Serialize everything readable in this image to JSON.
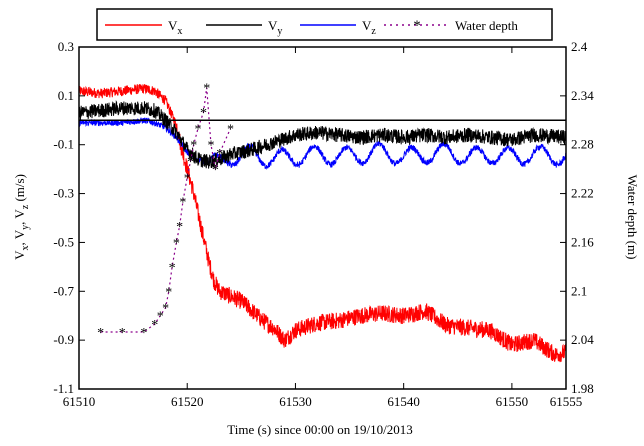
{
  "chart_data": {
    "type": "line",
    "xlabel": "Time (s) since 00:00 on 19/10/2013",
    "ylabel_left": "V_x, V_y, V_z (m/s)",
    "ylabel_right": "Water depth (m)",
    "xlim": [
      61510,
      61555
    ],
    "ylim_left": [
      -1.1,
      0.3
    ],
    "ylim_right": [
      1.98,
      2.4
    ],
    "x_ticks": [
      61510,
      61520,
      61530,
      61540,
      61550,
      61555
    ],
    "y_left_ticks": [
      -1.1,
      -0.9,
      -0.7,
      -0.5,
      -0.3,
      -0.1,
      0.1,
      0.3
    ],
    "y_right_ticks": [
      1.98,
      2.04,
      2.1,
      2.16,
      2.22,
      2.28,
      2.34,
      2.4
    ],
    "grid": false,
    "legend_position": "top",
    "legend": [
      "V_x",
      "V_y",
      "V_z",
      "Water depth"
    ],
    "colors": {
      "vx": "#ff0000",
      "vy": "#000000",
      "vz": "#0000ff",
      "depth": "#8b008b"
    },
    "reference_line_y": 0.0,
    "series": [
      {
        "name": "V_x",
        "axis": "left",
        "x": [
          61510,
          61512,
          61514,
          61516,
          61517,
          61518,
          61519,
          61519.5,
          61520,
          61520.5,
          61521,
          61521.5,
          61522,
          61522.5,
          61523,
          61524,
          61525,
          61526,
          61527,
          61528,
          61529,
          61530,
          61532,
          61534,
          61536,
          61538,
          61540,
          61542,
          61544,
          61546,
          61548,
          61550,
          61552,
          61554,
          61555
        ],
        "values": [
          0.12,
          0.11,
          0.12,
          0.13,
          0.12,
          0.08,
          -0.02,
          -0.12,
          -0.2,
          -0.28,
          -0.38,
          -0.48,
          -0.58,
          -0.66,
          -0.7,
          -0.72,
          -0.74,
          -0.78,
          -0.82,
          -0.85,
          -0.9,
          -0.86,
          -0.83,
          -0.82,
          -0.8,
          -0.79,
          -0.8,
          -0.78,
          -0.84,
          -0.85,
          -0.86,
          -0.92,
          -0.9,
          -0.96,
          -0.95
        ]
      },
      {
        "name": "V_y",
        "axis": "left",
        "x": [
          61510,
          61512,
          61514,
          61516,
          61517,
          61518,
          61519,
          61520,
          61521,
          61522,
          61523,
          61524,
          61526,
          61528,
          61530,
          61532,
          61534,
          61536,
          61538,
          61540,
          61542,
          61544,
          61546,
          61548,
          61550,
          61552,
          61555
        ],
        "values": [
          0.03,
          0.04,
          0.05,
          0.05,
          0.04,
          0.0,
          -0.05,
          -0.12,
          -0.16,
          -0.17,
          -0.16,
          -0.14,
          -0.12,
          -0.09,
          -0.06,
          -0.05,
          -0.06,
          -0.07,
          -0.06,
          -0.07,
          -0.06,
          -0.07,
          -0.06,
          -0.07,
          -0.08,
          -0.06,
          -0.07
        ]
      },
      {
        "name": "V_z",
        "axis": "left",
        "x": [
          61510,
          61512,
          61514,
          61516,
          61517,
          61518,
          61519,
          61520,
          61521,
          61522,
          61523,
          61524,
          61526,
          61528,
          61530,
          61532,
          61534,
          61536,
          61538,
          61540,
          61542,
          61544,
          61546,
          61548,
          61550,
          61552,
          61555
        ],
        "values": [
          -0.01,
          -0.01,
          -0.01,
          0.0,
          -0.01,
          -0.03,
          -0.07,
          -0.13,
          -0.16,
          -0.17,
          -0.18,
          -0.15,
          -0.14,
          -0.16,
          -0.15,
          -0.14,
          -0.15,
          -0.14,
          -0.13,
          -0.15,
          -0.14,
          -0.13,
          -0.15,
          -0.14,
          -0.15,
          -0.14,
          -0.15
        ]
      },
      {
        "name": "Water depth",
        "axis": "right",
        "x": [
          61512,
          61514,
          61516,
          61517,
          61517.5,
          61518,
          61518.3,
          61518.6,
          61519,
          61519.3,
          61519.6,
          61520,
          61520.3,
          61520.6,
          61521,
          61521.5,
          61521.8,
          61522.2,
          61522.6,
          61523,
          61524
        ],
        "values": [
          2.05,
          2.05,
          2.05,
          2.06,
          2.07,
          2.08,
          2.1,
          2.13,
          2.16,
          2.18,
          2.21,
          2.24,
          2.26,
          2.28,
          2.3,
          2.32,
          2.35,
          2.28,
          2.25,
          2.27,
          2.3
        ]
      }
    ]
  }
}
